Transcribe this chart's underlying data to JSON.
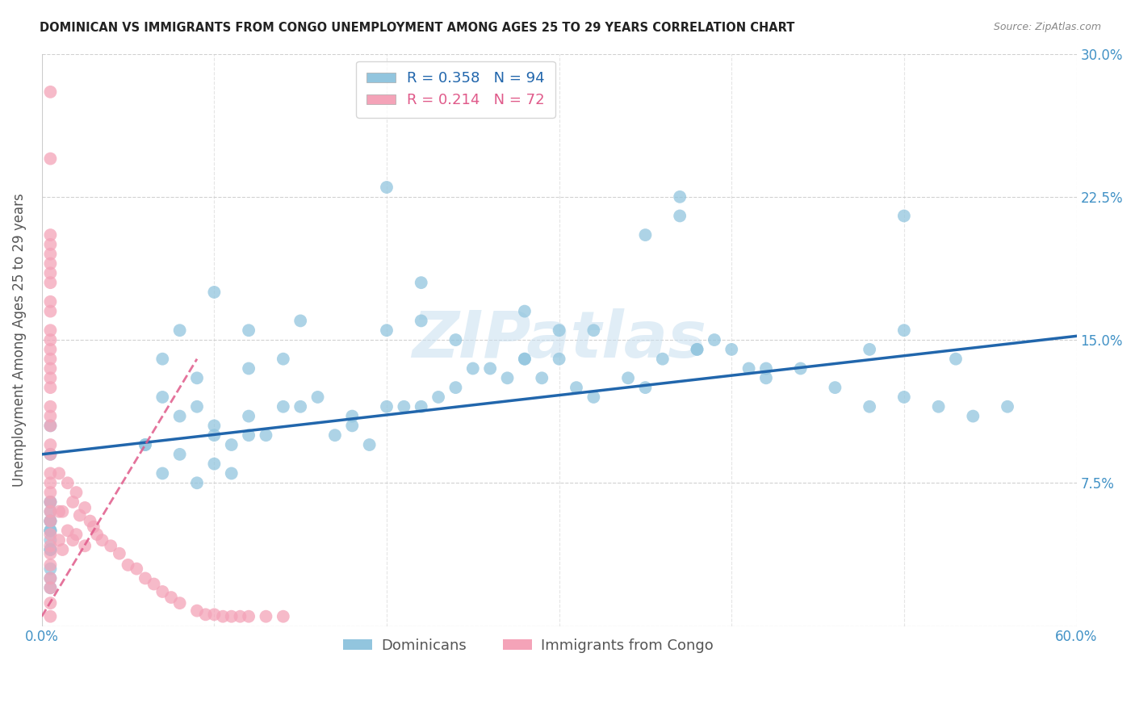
{
  "title": "DOMINICAN VS IMMIGRANTS FROM CONGO UNEMPLOYMENT AMONG AGES 25 TO 29 YEARS CORRELATION CHART",
  "source": "Source: ZipAtlas.com",
  "ylabel": "Unemployment Among Ages 25 to 29 years",
  "xlim": [
    0.0,
    0.6
  ],
  "ylim": [
    0.0,
    0.3
  ],
  "yticks": [
    0.0,
    0.075,
    0.15,
    0.225,
    0.3
  ],
  "ytick_labels_right": [
    "",
    "7.5%",
    "15.0%",
    "22.5%",
    "30.0%"
  ],
  "xticks": [
    0.0,
    0.1,
    0.2,
    0.3,
    0.4,
    0.5,
    0.6
  ],
  "xtick_labels": [
    "0.0%",
    "",
    "",
    "",
    "",
    "",
    "60.0%"
  ],
  "blue_color": "#92c5de",
  "pink_color": "#f4a3b8",
  "blue_line_color": "#2166ac",
  "pink_line_color": "#e05a8a",
  "tick_color": "#4292c6",
  "grid_color": "#cccccc",
  "watermark": "ZIPatlas",
  "legend_R_blue": "0.358",
  "legend_N_blue": "94",
  "legend_R_pink": "0.214",
  "legend_N_pink": "72",
  "legend_label_blue": "Dominicans",
  "legend_label_pink": "Immigrants from Congo",
  "blue_line_x0": 0.0,
  "blue_line_y0": 0.09,
  "blue_line_x1": 0.6,
  "blue_line_y1": 0.152,
  "pink_line_x0": 0.0,
  "pink_line_y0": 0.005,
  "pink_line_x1": 0.09,
  "pink_line_y1": 0.14,
  "blue_x": [
    0.37,
    0.005,
    0.37,
    0.48,
    0.42,
    0.53,
    0.39,
    0.41,
    0.005,
    0.38,
    0.2,
    0.35,
    0.2,
    0.22,
    0.5,
    0.22,
    0.24,
    0.28,
    0.5,
    0.12,
    0.1,
    0.15,
    0.12,
    0.14,
    0.3,
    0.28,
    0.32,
    0.08,
    0.09,
    0.07,
    0.06,
    0.08,
    0.1,
    0.11,
    0.12,
    0.1,
    0.07,
    0.06,
    0.08,
    0.09,
    0.07,
    0.09,
    0.1,
    0.11,
    0.13,
    0.12,
    0.14,
    0.15,
    0.16,
    0.18,
    0.17,
    0.19,
    0.2,
    0.18,
    0.21,
    0.23,
    0.22,
    0.25,
    0.24,
    0.26,
    0.28,
    0.27,
    0.29,
    0.3,
    0.32,
    0.31,
    0.34,
    0.35,
    0.36,
    0.38,
    0.4,
    0.42,
    0.44,
    0.46,
    0.48,
    0.5,
    0.52,
    0.54,
    0.56,
    0.005,
    0.005,
    0.005,
    0.005,
    0.005,
    0.005,
    0.005,
    0.005,
    0.005,
    0.005,
    0.005,
    0.005,
    0.005,
    0.005,
    0.005
  ],
  "blue_y": [
    0.225,
    0.09,
    0.215,
    0.145,
    0.135,
    0.14,
    0.15,
    0.135,
    0.105,
    0.145,
    0.23,
    0.205,
    0.155,
    0.18,
    0.155,
    0.16,
    0.15,
    0.165,
    0.215,
    0.155,
    0.175,
    0.16,
    0.135,
    0.14,
    0.155,
    0.14,
    0.155,
    0.155,
    0.13,
    0.14,
    0.095,
    0.09,
    0.085,
    0.08,
    0.1,
    0.105,
    0.12,
    0.095,
    0.11,
    0.115,
    0.08,
    0.075,
    0.1,
    0.095,
    0.1,
    0.11,
    0.115,
    0.115,
    0.12,
    0.11,
    0.1,
    0.095,
    0.115,
    0.105,
    0.115,
    0.12,
    0.115,
    0.135,
    0.125,
    0.135,
    0.14,
    0.13,
    0.13,
    0.14,
    0.12,
    0.125,
    0.13,
    0.125,
    0.14,
    0.145,
    0.145,
    0.13,
    0.135,
    0.125,
    0.115,
    0.12,
    0.115,
    0.11,
    0.115,
    0.065,
    0.06,
    0.05,
    0.045,
    0.055,
    0.05,
    0.065,
    0.055,
    0.04,
    0.04,
    0.03,
    0.025,
    0.02,
    0.055,
    0.05
  ],
  "pink_x": [
    0.005,
    0.005,
    0.005,
    0.005,
    0.005,
    0.005,
    0.005,
    0.005,
    0.005,
    0.005,
    0.005,
    0.005,
    0.005,
    0.005,
    0.005,
    0.005,
    0.005,
    0.005,
    0.005,
    0.005,
    0.005,
    0.005,
    0.005,
    0.005,
    0.005,
    0.005,
    0.005,
    0.005,
    0.005,
    0.005,
    0.005,
    0.005,
    0.005,
    0.005,
    0.005,
    0.005,
    0.01,
    0.01,
    0.01,
    0.012,
    0.012,
    0.015,
    0.015,
    0.018,
    0.018,
    0.02,
    0.02,
    0.022,
    0.025,
    0.025,
    0.028,
    0.03,
    0.032,
    0.035,
    0.04,
    0.045,
    0.05,
    0.055,
    0.06,
    0.065,
    0.07,
    0.075,
    0.08,
    0.09,
    0.095,
    0.1,
    0.105,
    0.11,
    0.115,
    0.12,
    0.13,
    0.14
  ],
  "pink_y": [
    0.28,
    0.245,
    0.205,
    0.2,
    0.195,
    0.19,
    0.185,
    0.18,
    0.17,
    0.165,
    0.155,
    0.15,
    0.145,
    0.14,
    0.135,
    0.13,
    0.125,
    0.115,
    0.11,
    0.105,
    0.095,
    0.09,
    0.08,
    0.075,
    0.07,
    0.065,
    0.06,
    0.055,
    0.048,
    0.042,
    0.038,
    0.032,
    0.025,
    0.02,
    0.012,
    0.005,
    0.08,
    0.06,
    0.045,
    0.06,
    0.04,
    0.075,
    0.05,
    0.065,
    0.045,
    0.07,
    0.048,
    0.058,
    0.062,
    0.042,
    0.055,
    0.052,
    0.048,
    0.045,
    0.042,
    0.038,
    0.032,
    0.03,
    0.025,
    0.022,
    0.018,
    0.015,
    0.012,
    0.008,
    0.006,
    0.006,
    0.005,
    0.005,
    0.005,
    0.005,
    0.005,
    0.005
  ]
}
